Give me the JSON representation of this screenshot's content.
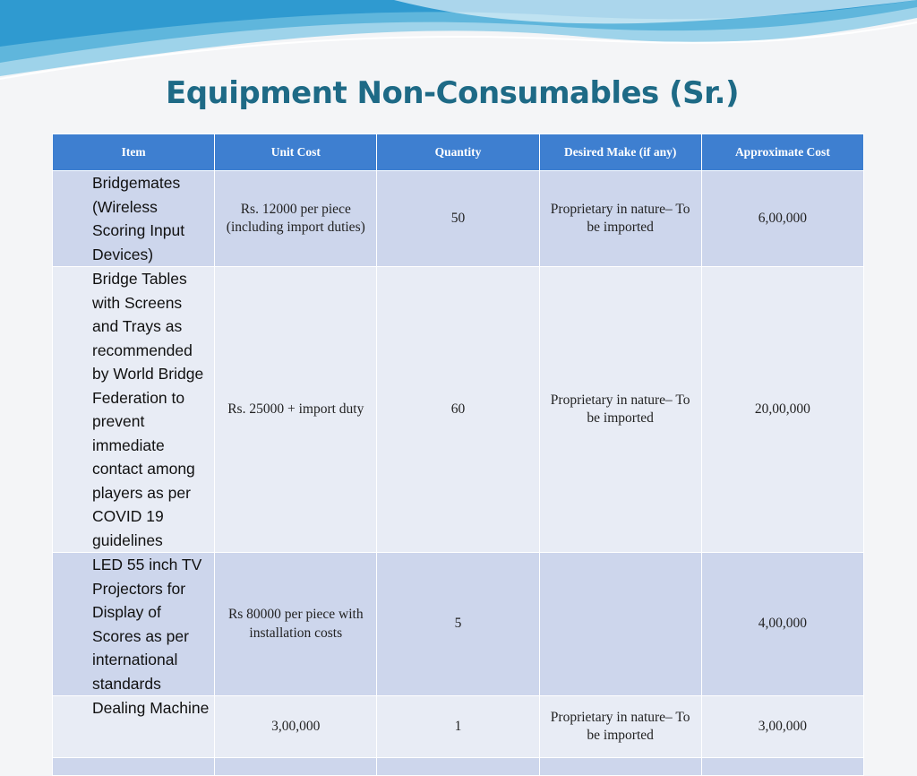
{
  "title": "Equipment Non-Consumables (Sr.)",
  "table": {
    "header": [
      "Item",
      "Unit Cost",
      "Quantity",
      "Desired Make (if any)",
      "Approximate Cost"
    ],
    "rows": [
      {
        "item": "Bridgemates (Wireless Scoring Input Devices)",
        "unit_cost": "Rs. 12000 per piece (including import duties)",
        "quantity": "50",
        "desired_make": "Proprietary in nature– To be imported",
        "approximate_cost": "6,00,000"
      },
      {
        "item": "Bridge Tables with Screens and Trays as recommended by World Bridge Federation to prevent immediate contact among players as per COVID 19 guidelines",
        "unit_cost": "Rs. 25000 + import duty",
        "quantity": "60",
        "desired_make": "Proprietary in nature– To be imported",
        "approximate_cost": "20,00,000"
      },
      {
        "item": "LED 55 inch TV Projectors for Display of Scores as per international standards",
        "unit_cost": "Rs 80000 per piece with installation costs",
        "quantity": "5",
        "approximate_cost": "4,00,000"
      },
      {
        "item": "Dealing Machine",
        "unit_cost": "3,00,000",
        "quantity": "1",
        "desired_make": "Proprietary in nature– To be imported",
        "approximate_cost": "3,00,000"
      }
    ]
  }
}
